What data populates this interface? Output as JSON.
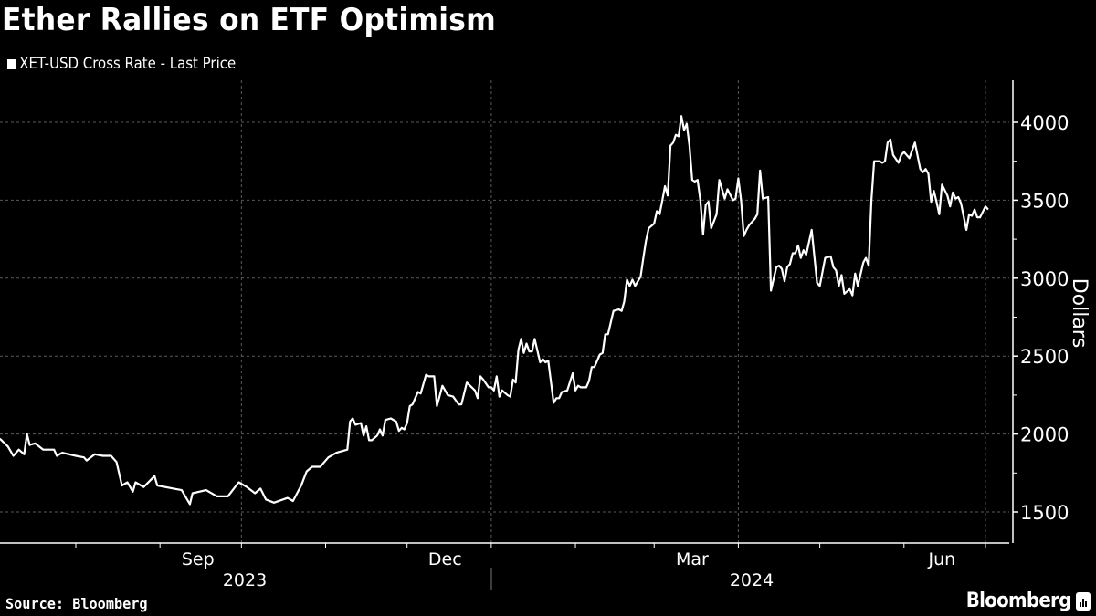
{
  "title": "Ether Rallies on ETF Optimism",
  "source": "Source: Bloomberg",
  "brand": "Bloomberg",
  "colors": {
    "background": "#000000",
    "line": "#ffffff",
    "grid": "#5a5a5a"
  },
  "chart_data": {
    "type": "line",
    "title": "Ether Rallies on ETF Optimism",
    "ylabel": "Dollars",
    "xlabel": "",
    "ylim": [
      1300,
      4300
    ],
    "yticks": [
      "1500",
      "2000",
      "2500",
      "3000",
      "3500",
      "4000"
    ],
    "xtick_months": [
      {
        "label": "Sep",
        "date": "2023-09-15"
      },
      {
        "label": "Dec",
        "date": "2023-12-15"
      },
      {
        "label": "Mar",
        "date": "2024-03-15"
      },
      {
        "label": "Jun",
        "date": "2024-06-15"
      }
    ],
    "xtick_years": [
      {
        "label": "2023",
        "date": "2023-09-30"
      },
      {
        "label": "2024",
        "date": "2024-04-01"
      }
    ],
    "grid": true,
    "legend_position": "top-left",
    "series": [
      {
        "name": "XET-USD Cross Rate - Last Price",
        "points": [
          [
            "2023-07-04",
            1970
          ],
          [
            "2023-07-07",
            1920
          ],
          [
            "2023-07-09",
            1860
          ],
          [
            "2023-07-11",
            1900
          ],
          [
            "2023-07-13",
            1870
          ],
          [
            "2023-07-14",
            2000
          ],
          [
            "2023-07-15",
            1930
          ],
          [
            "2023-07-17",
            1940
          ],
          [
            "2023-07-20",
            1900
          ],
          [
            "2023-07-24",
            1900
          ],
          [
            "2023-07-25",
            1860
          ],
          [
            "2023-07-27",
            1880
          ],
          [
            "2023-08-01",
            1860
          ],
          [
            "2023-08-04",
            1850
          ],
          [
            "2023-08-05",
            1830
          ],
          [
            "2023-08-08",
            1870
          ],
          [
            "2023-08-11",
            1860
          ],
          [
            "2023-08-14",
            1860
          ],
          [
            "2023-08-16",
            1820
          ],
          [
            "2023-08-18",
            1670
          ],
          [
            "2023-08-20",
            1690
          ],
          [
            "2023-08-22",
            1630
          ],
          [
            "2023-08-23",
            1690
          ],
          [
            "2023-08-26",
            1660
          ],
          [
            "2023-08-30",
            1730
          ],
          [
            "2023-08-31",
            1670
          ],
          [
            "2023-09-06",
            1650
          ],
          [
            "2023-09-09",
            1640
          ],
          [
            "2023-09-12",
            1550
          ],
          [
            "2023-09-13",
            1620
          ],
          [
            "2023-09-18",
            1640
          ],
          [
            "2023-09-22",
            1600
          ],
          [
            "2023-09-26",
            1600
          ],
          [
            "2023-09-30",
            1690
          ],
          [
            "2023-10-03",
            1660
          ],
          [
            "2023-10-06",
            1620
          ],
          [
            "2023-10-08",
            1650
          ],
          [
            "2023-10-10",
            1580
          ],
          [
            "2023-10-13",
            1560
          ],
          [
            "2023-10-18",
            1590
          ],
          [
            "2023-10-20",
            1570
          ],
          [
            "2023-10-23",
            1670
          ],
          [
            "2023-10-25",
            1760
          ],
          [
            "2023-10-27",
            1790
          ],
          [
            "2023-10-30",
            1790
          ],
          [
            "2023-11-02",
            1850
          ],
          [
            "2023-11-05",
            1880
          ],
          [
            "2023-11-09",
            1900
          ],
          [
            "2023-11-10",
            2080
          ],
          [
            "2023-11-11",
            2100
          ],
          [
            "2023-11-12",
            2060
          ],
          [
            "2023-11-14",
            2070
          ],
          [
            "2023-11-15",
            1990
          ],
          [
            "2023-11-16",
            2050
          ],
          [
            "2023-11-17",
            1960
          ],
          [
            "2023-11-18",
            1960
          ],
          [
            "2023-11-20",
            1990
          ],
          [
            "2023-11-21",
            2030
          ],
          [
            "2023-11-22",
            1990
          ],
          [
            "2023-11-23",
            2090
          ],
          [
            "2023-11-25",
            2100
          ],
          [
            "2023-11-27",
            2080
          ],
          [
            "2023-11-28",
            2020
          ],
          [
            "2023-11-29",
            2040
          ],
          [
            "2023-11-30",
            2030
          ],
          [
            "2023-12-01",
            2070
          ],
          [
            "2023-12-02",
            2180
          ],
          [
            "2023-12-03",
            2190
          ],
          [
            "2023-12-05",
            2270
          ],
          [
            "2023-12-06",
            2260
          ],
          [
            "2023-12-08",
            2380
          ],
          [
            "2023-12-09",
            2370
          ],
          [
            "2023-12-11",
            2370
          ],
          [
            "2023-12-12",
            2180
          ],
          [
            "2023-12-14",
            2310
          ],
          [
            "2023-12-16",
            2250
          ],
          [
            "2023-12-18",
            2240
          ],
          [
            "2023-12-20",
            2190
          ],
          [
            "2023-12-21",
            2190
          ],
          [
            "2023-12-23",
            2330
          ],
          [
            "2023-12-26",
            2280
          ],
          [
            "2023-12-27",
            2230
          ],
          [
            "2023-12-28",
            2370
          ],
          [
            "2023-12-29",
            2350
          ],
          [
            "2023-12-31",
            2300
          ],
          [
            "2024-01-01",
            2300
          ],
          [
            "2024-01-02",
            2280
          ],
          [
            "2024-01-03",
            2370
          ],
          [
            "2024-01-04",
            2240
          ],
          [
            "2024-01-05",
            2280
          ],
          [
            "2024-01-07",
            2250
          ],
          [
            "2024-01-08",
            2240
          ],
          [
            "2024-01-09",
            2350
          ],
          [
            "2024-01-10",
            2330
          ],
          [
            "2024-01-11",
            2540
          ],
          [
            "2024-01-12",
            2610
          ],
          [
            "2024-01-13",
            2520
          ],
          [
            "2024-01-14",
            2580
          ],
          [
            "2024-01-15",
            2530
          ],
          [
            "2024-01-16",
            2530
          ],
          [
            "2024-01-17",
            2610
          ],
          [
            "2024-01-19",
            2460
          ],
          [
            "2024-01-20",
            2480
          ],
          [
            "2024-01-21",
            2460
          ],
          [
            "2024-01-22",
            2470
          ],
          [
            "2024-01-24",
            2200
          ],
          [
            "2024-01-25",
            2230
          ],
          [
            "2024-01-26",
            2230
          ],
          [
            "2024-01-27",
            2270
          ],
          [
            "2024-01-29",
            2280
          ],
          [
            "2024-01-31",
            2390
          ],
          [
            "2024-02-01",
            2280
          ],
          [
            "2024-02-02",
            2310
          ],
          [
            "2024-02-03",
            2300
          ],
          [
            "2024-02-05",
            2300
          ],
          [
            "2024-02-06",
            2340
          ],
          [
            "2024-02-07",
            2430
          ],
          [
            "2024-02-08",
            2430
          ],
          [
            "2024-02-10",
            2510
          ],
          [
            "2024-02-11",
            2520
          ],
          [
            "2024-02-12",
            2640
          ],
          [
            "2024-02-13",
            2640
          ],
          [
            "2024-02-15",
            2790
          ],
          [
            "2024-02-17",
            2800
          ],
          [
            "2024-02-18",
            2790
          ],
          [
            "2024-02-19",
            2850
          ],
          [
            "2024-02-20",
            2990
          ],
          [
            "2024-02-21",
            2950
          ],
          [
            "2024-02-22",
            2990
          ],
          [
            "2024-02-23",
            2950
          ],
          [
            "2024-02-25",
            3010
          ],
          [
            "2024-02-26",
            3130
          ],
          [
            "2024-02-27",
            3240
          ],
          [
            "2024-02-28",
            3320
          ],
          [
            "2024-03-01",
            3350
          ],
          [
            "2024-03-02",
            3430
          ],
          [
            "2024-03-03",
            3410
          ],
          [
            "2024-03-04",
            3500
          ],
          [
            "2024-03-05",
            3590
          ],
          [
            "2024-03-06",
            3530
          ],
          [
            "2024-03-07",
            3850
          ],
          [
            "2024-03-08",
            3870
          ],
          [
            "2024-03-09",
            3920
          ],
          [
            "2024-03-10",
            3910
          ],
          [
            "2024-03-11",
            4040
          ],
          [
            "2024-03-12",
            3950
          ],
          [
            "2024-03-13",
            3990
          ],
          [
            "2024-03-14",
            3850
          ],
          [
            "2024-03-15",
            3630
          ],
          [
            "2024-03-16",
            3620
          ],
          [
            "2024-03-17",
            3630
          ],
          [
            "2024-03-18",
            3500
          ],
          [
            "2024-03-19",
            3280
          ],
          [
            "2024-03-20",
            3470
          ],
          [
            "2024-03-21",
            3490
          ],
          [
            "2024-03-22",
            3320
          ],
          [
            "2024-03-24",
            3410
          ],
          [
            "2024-03-25",
            3630
          ],
          [
            "2024-03-27",
            3510
          ],
          [
            "2024-03-28",
            3570
          ],
          [
            "2024-03-30",
            3500
          ],
          [
            "2024-03-31",
            3510
          ],
          [
            "2024-04-01",
            3640
          ],
          [
            "2024-04-02",
            3500
          ],
          [
            "2024-04-03",
            3270
          ],
          [
            "2024-04-04",
            3310
          ],
          [
            "2024-04-05",
            3340
          ],
          [
            "2024-04-07",
            3380
          ],
          [
            "2024-04-08",
            3410
          ],
          [
            "2024-04-09",
            3690
          ],
          [
            "2024-04-10",
            3510
          ],
          [
            "2024-04-12",
            3520
          ],
          [
            "2024-04-13",
            2920
          ],
          [
            "2024-04-15",
            3070
          ],
          [
            "2024-04-16",
            3080
          ],
          [
            "2024-04-17",
            3060
          ],
          [
            "2024-04-18",
            2980
          ],
          [
            "2024-04-19",
            3070
          ],
          [
            "2024-04-20",
            3090
          ],
          [
            "2024-04-21",
            3160
          ],
          [
            "2024-04-22",
            3160
          ],
          [
            "2024-04-23",
            3210
          ],
          [
            "2024-04-24",
            3130
          ],
          [
            "2024-04-25",
            3180
          ],
          [
            "2024-04-26",
            3150
          ],
          [
            "2024-04-28",
            3310
          ],
          [
            "2024-04-30",
            2970
          ],
          [
            "2024-05-01",
            2950
          ],
          [
            "2024-05-03",
            3130
          ],
          [
            "2024-05-05",
            3140
          ],
          [
            "2024-05-06",
            3070
          ],
          [
            "2024-05-07",
            3050
          ],
          [
            "2024-05-08",
            2950
          ],
          [
            "2024-05-09",
            3020
          ],
          [
            "2024-05-10",
            2900
          ],
          [
            "2024-05-12",
            2930
          ],
          [
            "2024-05-13",
            2890
          ],
          [
            "2024-05-14",
            3030
          ],
          [
            "2024-05-15",
            2950
          ],
          [
            "2024-05-17",
            3100
          ],
          [
            "2024-05-18",
            3130
          ],
          [
            "2024-05-19",
            3080
          ],
          [
            "2024-05-20",
            3500
          ],
          [
            "2024-05-21",
            3750
          ],
          [
            "2024-05-23",
            3750
          ],
          [
            "2024-05-24",
            3740
          ],
          [
            "2024-05-25",
            3750
          ],
          [
            "2024-05-26",
            3870
          ],
          [
            "2024-05-27",
            3890
          ],
          [
            "2024-05-28",
            3790
          ],
          [
            "2024-05-30",
            3740
          ],
          [
            "2024-05-31",
            3790
          ],
          [
            "2024-06-01",
            3810
          ],
          [
            "2024-06-03",
            3770
          ],
          [
            "2024-06-05",
            3870
          ],
          [
            "2024-06-07",
            3700
          ],
          [
            "2024-06-08",
            3680
          ],
          [
            "2024-06-09",
            3700
          ],
          [
            "2024-06-10",
            3670
          ],
          [
            "2024-06-11",
            3490
          ],
          [
            "2024-06-12",
            3560
          ],
          [
            "2024-06-13",
            3490
          ],
          [
            "2024-06-14",
            3410
          ],
          [
            "2024-06-15",
            3600
          ],
          [
            "2024-06-17",
            3530
          ],
          [
            "2024-06-18",
            3460
          ],
          [
            "2024-06-19",
            3550
          ],
          [
            "2024-06-20",
            3510
          ],
          [
            "2024-06-21",
            3520
          ],
          [
            "2024-06-22",
            3480
          ],
          [
            "2024-06-24",
            3310
          ],
          [
            "2024-06-25",
            3410
          ],
          [
            "2024-06-26",
            3400
          ],
          [
            "2024-06-27",
            3440
          ],
          [
            "2024-06-28",
            3390
          ],
          [
            "2024-06-29",
            3390
          ],
          [
            "2024-07-01",
            3460
          ],
          [
            "2024-07-02",
            3440
          ]
        ]
      }
    ]
  }
}
